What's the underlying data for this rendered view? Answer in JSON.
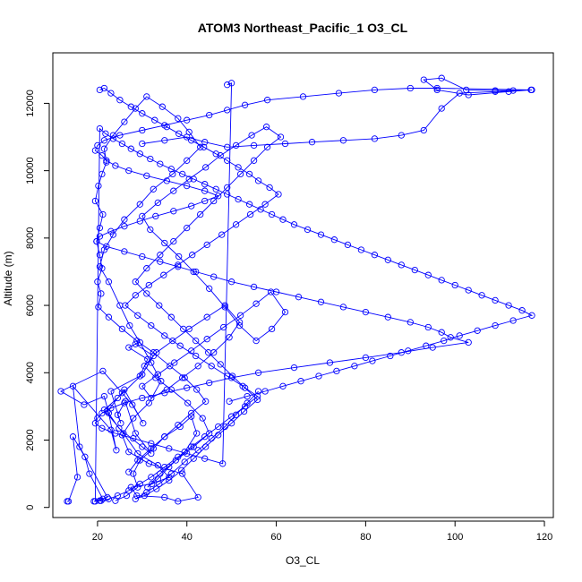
{
  "chart_data": {
    "type": "line",
    "title": "ATOM3 Northeast_Pacific_1 O3_CL",
    "xlabel": "O3_CL",
    "ylabel": "Altitude (m)",
    "xlim": [
      10,
      122
    ],
    "ylim": [
      -300,
      13500
    ],
    "x_ticks": [
      20,
      40,
      60,
      80,
      100,
      120
    ],
    "y_ticks": [
      0,
      2000,
      4000,
      6000,
      8000,
      10000,
      12000
    ],
    "grid": false,
    "series_color": "#0000ff",
    "point_marker": "open-circle",
    "series": [
      {
        "x": [
          13.2,
          13.5,
          15.5,
          14.5,
          17.2,
          18.2,
          21.2,
          20.5,
          19.2,
          22.2,
          16.0,
          14.5,
          23.0,
          24.2,
          22.5,
          21.5,
          17.0,
          11.8,
          21.2,
          25.5,
          27.8,
          30.2,
          26.0,
          22.2,
          24.8,
          30.0,
          32.0,
          28.5,
          26.2,
          24.5,
          25.2,
          23.0,
          29.5,
          31.2,
          27.0,
          28.5,
          32.5,
          30.0,
          24.5,
          21.5,
          25.8,
          29.0,
          33.5,
          36.0,
          32.2,
          27.5,
          28.8,
          35.0,
          38.0,
          42.5,
          39.0,
          31.5,
          27.0,
          25.5,
          28.0,
          31.5,
          34.2,
          32.0,
          29.5,
          27.2,
          25.0,
          22.5,
          20.5,
          21.5,
          23.5,
          26.0,
          29.5,
          32.5,
          36.8,
          40.0,
          43.0,
          40.5,
          38.0,
          34.5,
          31.0,
          28.5,
          26.0,
          23.5,
          21.5,
          22.0,
          21.0,
          20.2,
          19.5,
          21.2,
          20.5,
          19.8,
          20.5,
          21.0,
          20.0,
          20.8,
          20.2,
          22.5,
          25.5,
          28.8,
          32.5,
          36.2,
          39.5,
          42.2,
          44.2,
          41.0,
          38.0,
          35.0,
          32.0,
          29.0,
          27.0
        ],
        "y": [
          180,
          180,
          900,
          2100,
          1500,
          1000,
          250,
          200,
          180,
          300,
          1800,
          3600,
          2300,
          1700,
          2800,
          3300,
          3050,
          3450,
          4050,
          3400,
          3050,
          2500,
          3500,
          2850,
          2350,
          1800,
          1600,
          2200,
          3150,
          2750,
          2500,
          3450,
          3900,
          4400,
          4750,
          4850,
          4500,
          3950,
          3250,
          2900,
          2200,
          1600,
          1250,
          900,
          700,
          600,
          350,
          300,
          180,
          300,
          1000,
          1300,
          1650,
          2150,
          2650,
          3100,
          3750,
          4300,
          4900,
          5400,
          6000,
          6700,
          7150,
          7650,
          8100,
          8550,
          9000,
          9450,
          9900,
          10300,
          10700,
          11150,
          11550,
          11900,
          12200,
          11850,
          11450,
          11050,
          10650,
          10250,
          9900,
          9550,
          9100,
          8700,
          8300,
          7900,
          7500,
          7100,
          6700,
          6350,
          5950,
          5650,
          5300,
          4950,
          4600,
          4200,
          3850,
          3500,
          3150,
          2800,
          2450,
          2100,
          1750,
          1400,
          1050
        ]
      },
      {
        "x": [
          24.0,
          26.5,
          29.0,
          28.0,
          29.5,
          32.5,
          35.0,
          38.5,
          41.0,
          42.2,
          39.5,
          36.0,
          33.5,
          31.2,
          34.0,
          37.5,
          41.5,
          45.0,
          43.5,
          40.2,
          36.5,
          33.0,
          30.5,
          33.2,
          36.8,
          40.5,
          44.5,
          48.5,
          51.8,
          49.5,
          46.0,
          42.5,
          39.0,
          35.5,
          32.0,
          30.0,
          33.5,
          37.2,
          41.0,
          44.5,
          48.2,
          52.0,
          55.5,
          58.8,
          62.0,
          59.0,
          55.5,
          51.8,
          48.5,
          45.0,
          41.5,
          38.2,
          35.0,
          31.8,
          30.0,
          33.5,
          37.0,
          40.5,
          44.2,
          47.5,
          51.0,
          54.5,
          57.8,
          61.0,
          58.0,
          55.0,
          52.0,
          49.0,
          46.0,
          43.0,
          40.0,
          37.0,
          34.0,
          31.0,
          28.5,
          31.0,
          33.8,
          36.5,
          39.2,
          42.0,
          44.8,
          47.5,
          50.2,
          53.0,
          55.8,
          52.8,
          50.0,
          47.0,
          44.2,
          41.5,
          38.8,
          36.0,
          33.2,
          30.5,
          28.5,
          31.0,
          33.8,
          36.5,
          39.5,
          42.5,
          45.5,
          48.5,
          51.0,
          53.5,
          56.0
        ],
        "y": [
          200,
          350,
          600,
          1000,
          1400,
          1750,
          2100,
          2400,
          2700,
          2200,
          1650,
          1200,
          850,
          600,
          1000,
          1400,
          1800,
          2200,
          2650,
          3100,
          3500,
          3850,
          4200,
          4600,
          4950,
          5300,
          5650,
          6000,
          5500,
          5050,
          4600,
          4200,
          3850,
          3500,
          3250,
          3600,
          3950,
          4300,
          4650,
          5000,
          5350,
          5700,
          6050,
          6400,
          5800,
          5300,
          4950,
          5400,
          5950,
          6500,
          7000,
          7450,
          7850,
          8250,
          8650,
          9050,
          9400,
          9750,
          10100,
          10450,
          10750,
          11050,
          11300,
          11000,
          10700,
          10300,
          9900,
          9500,
          9100,
          8700,
          8300,
          7900,
          7500,
          7100,
          6700,
          6350,
          6000,
          5650,
          5300,
          4950,
          4600,
          4250,
          3900,
          3550,
          3200,
          2850,
          2500,
          2150,
          1800,
          1450,
          1100,
          800,
          550,
          350,
          250,
          450,
          700,
          1000,
          1350,
          1700,
          2050,
          2400,
          2750,
          3100,
          3450
        ]
      },
      {
        "x": [
          20.5,
          21.5,
          23.0,
          25.0,
          27.5,
          30.0,
          32.8,
          35.5,
          38.2,
          41.0,
          43.8,
          46.5,
          49.0,
          51.5,
          54.0,
          56.0,
          58.5,
          60.5,
          57.5,
          54.2,
          51.0,
          47.8,
          44.5,
          41.2,
          38.0,
          34.8,
          31.5,
          28.5,
          26.2,
          29.0,
          32.0,
          35.0,
          38.5,
          42.0,
          45.5,
          49.0,
          52.5,
          55.8,
          53.0,
          50.0,
          47.0,
          44.0,
          41.0,
          38.0,
          35.0,
          32.0,
          29.5,
          27.0,
          24.5,
          22.5,
          20.8,
          19.5,
          20.5,
          21.8,
          23.5,
          25.5,
          27.5,
          29.5,
          31.8,
          34.0,
          36.5,
          39.0,
          41.5,
          44.0,
          46.5,
          49.0,
          51.5,
          54.0,
          56.5,
          59.0,
          61.5,
          64.0,
          67.0,
          70.0,
          73.0,
          76.0,
          79.0,
          82.0,
          85.0,
          88.0,
          91.0,
          94.0,
          97.0,
          100.0,
          103.0,
          106.0,
          109.0,
          112.0,
          115.0,
          117.2,
          113.0,
          109.0,
          105.0,
          101.0,
          97.5,
          93.5,
          89.5,
          85.5,
          81.5,
          77.5,
          73.5,
          69.5,
          65.5,
          61.5,
          57.5,
          53.5,
          49.5
        ],
        "y": [
          12400,
          12450,
          12300,
          12100,
          11900,
          11700,
          11500,
          11300,
          11100,
          10900,
          10700,
          10500,
          10300,
          10100,
          9900,
          9700,
          9500,
          9300,
          9000,
          8700,
          8400,
          8100,
          7800,
          7500,
          7200,
          6900,
          6600,
          6300,
          6000,
          5700,
          5400,
          5100,
          4800,
          4500,
          4200,
          3900,
          3600,
          3300,
          3000,
          2700,
          2400,
          2100,
          1800,
          1500,
          1200,
          900,
          700,
          500,
          350,
          250,
          200,
          180,
          11250,
          11100,
          10950,
          10800,
          10650,
          10500,
          10350,
          10200,
          10050,
          9900,
          9750,
          9600,
          9450,
          9300,
          9150,
          9000,
          8850,
          8700,
          8550,
          8400,
          8250,
          8100,
          7950,
          7800,
          7650,
          7500,
          7350,
          7200,
          7050,
          6900,
          6750,
          6600,
          6450,
          6300,
          6150,
          6000,
          5850,
          5700,
          5550,
          5400,
          5250,
          5100,
          4950,
          4800,
          4650,
          4500,
          4350,
          4200,
          4050,
          3900,
          3750,
          3600,
          3450,
          3300,
          3150
        ]
      },
      {
        "x": [
          30.0,
          35.0,
          40.0,
          44.0,
          49.0,
          55.0,
          62.0,
          68.0,
          75.0,
          82.0,
          88.0,
          93.0,
          97.0,
          101.0,
          109.0,
          117.0,
          112.0,
          103.0,
          96.0,
          93.0,
          97.0,
          102.5,
          109.0,
          113.0,
          117.2,
          96.0,
          90.0,
          82.0,
          74.0,
          66.0,
          58.0,
          53.0,
          49.0,
          45.0,
          40.0,
          35.0,
          30.0,
          25.0,
          21.5,
          20.0,
          19.5,
          21.0,
          22.0,
          24.0,
          27.0,
          31.0,
          35.5,
          40.0,
          44.0,
          47.0,
          44.0,
          41.0,
          37.0,
          33.0,
          29.5,
          26.0,
          23.0,
          20.5,
          19.8,
          22.0,
          26.0,
          30.0,
          34.0,
          38.0,
          42.0,
          46.0,
          50.0,
          55.0,
          60.0,
          65.0,
          70.0,
          75.0,
          80.0,
          85.0,
          90.0,
          94.0,
          97.0,
          99.0,
          103.0,
          95.0,
          88.0,
          80.0,
          72.0,
          64.0,
          56.0,
          50.0,
          45.0,
          40.0,
          35.0,
          30.0,
          26.0,
          23.0,
          21.0,
          20.0,
          19.5,
          21.0,
          24.0,
          28.0,
          32.0,
          36.0,
          40.0,
          44.0,
          48.0,
          50.0,
          49.0
        ],
        "y": [
          10800,
          10900,
          11000,
          10850,
          10700,
          10750,
          10800,
          10850,
          10900,
          10950,
          11050,
          11200,
          11850,
          12300,
          12350,
          12400,
          12350,
          12250,
          12400,
          12700,
          12750,
          12400,
          12380,
          12380,
          12400,
          12450,
          12450,
          12400,
          12300,
          12200,
          12100,
          11950,
          11800,
          11650,
          11500,
          11350,
          11200,
          11050,
          10900,
          10750,
          10600,
          10450,
          10300,
          10150,
          10000,
          9850,
          9700,
          9550,
          9400,
          9250,
          9100,
          8950,
          8800,
          8650,
          8500,
          8350,
          8200,
          8050,
          7900,
          7750,
          7600,
          7450,
          7300,
          7150,
          7000,
          6850,
          6700,
          6550,
          6400,
          6250,
          6100,
          5950,
          5800,
          5650,
          5500,
          5350,
          5200,
          5050,
          4900,
          4750,
          4600,
          4450,
          4300,
          4150,
          4000,
          3850,
          3700,
          3550,
          3400,
          3250,
          3100,
          2950,
          2800,
          2650,
          2500,
          2350,
          2200,
          2050,
          1900,
          1750,
          1600,
          1450,
          1300,
          12600,
          12550
        ]
      }
    ]
  }
}
